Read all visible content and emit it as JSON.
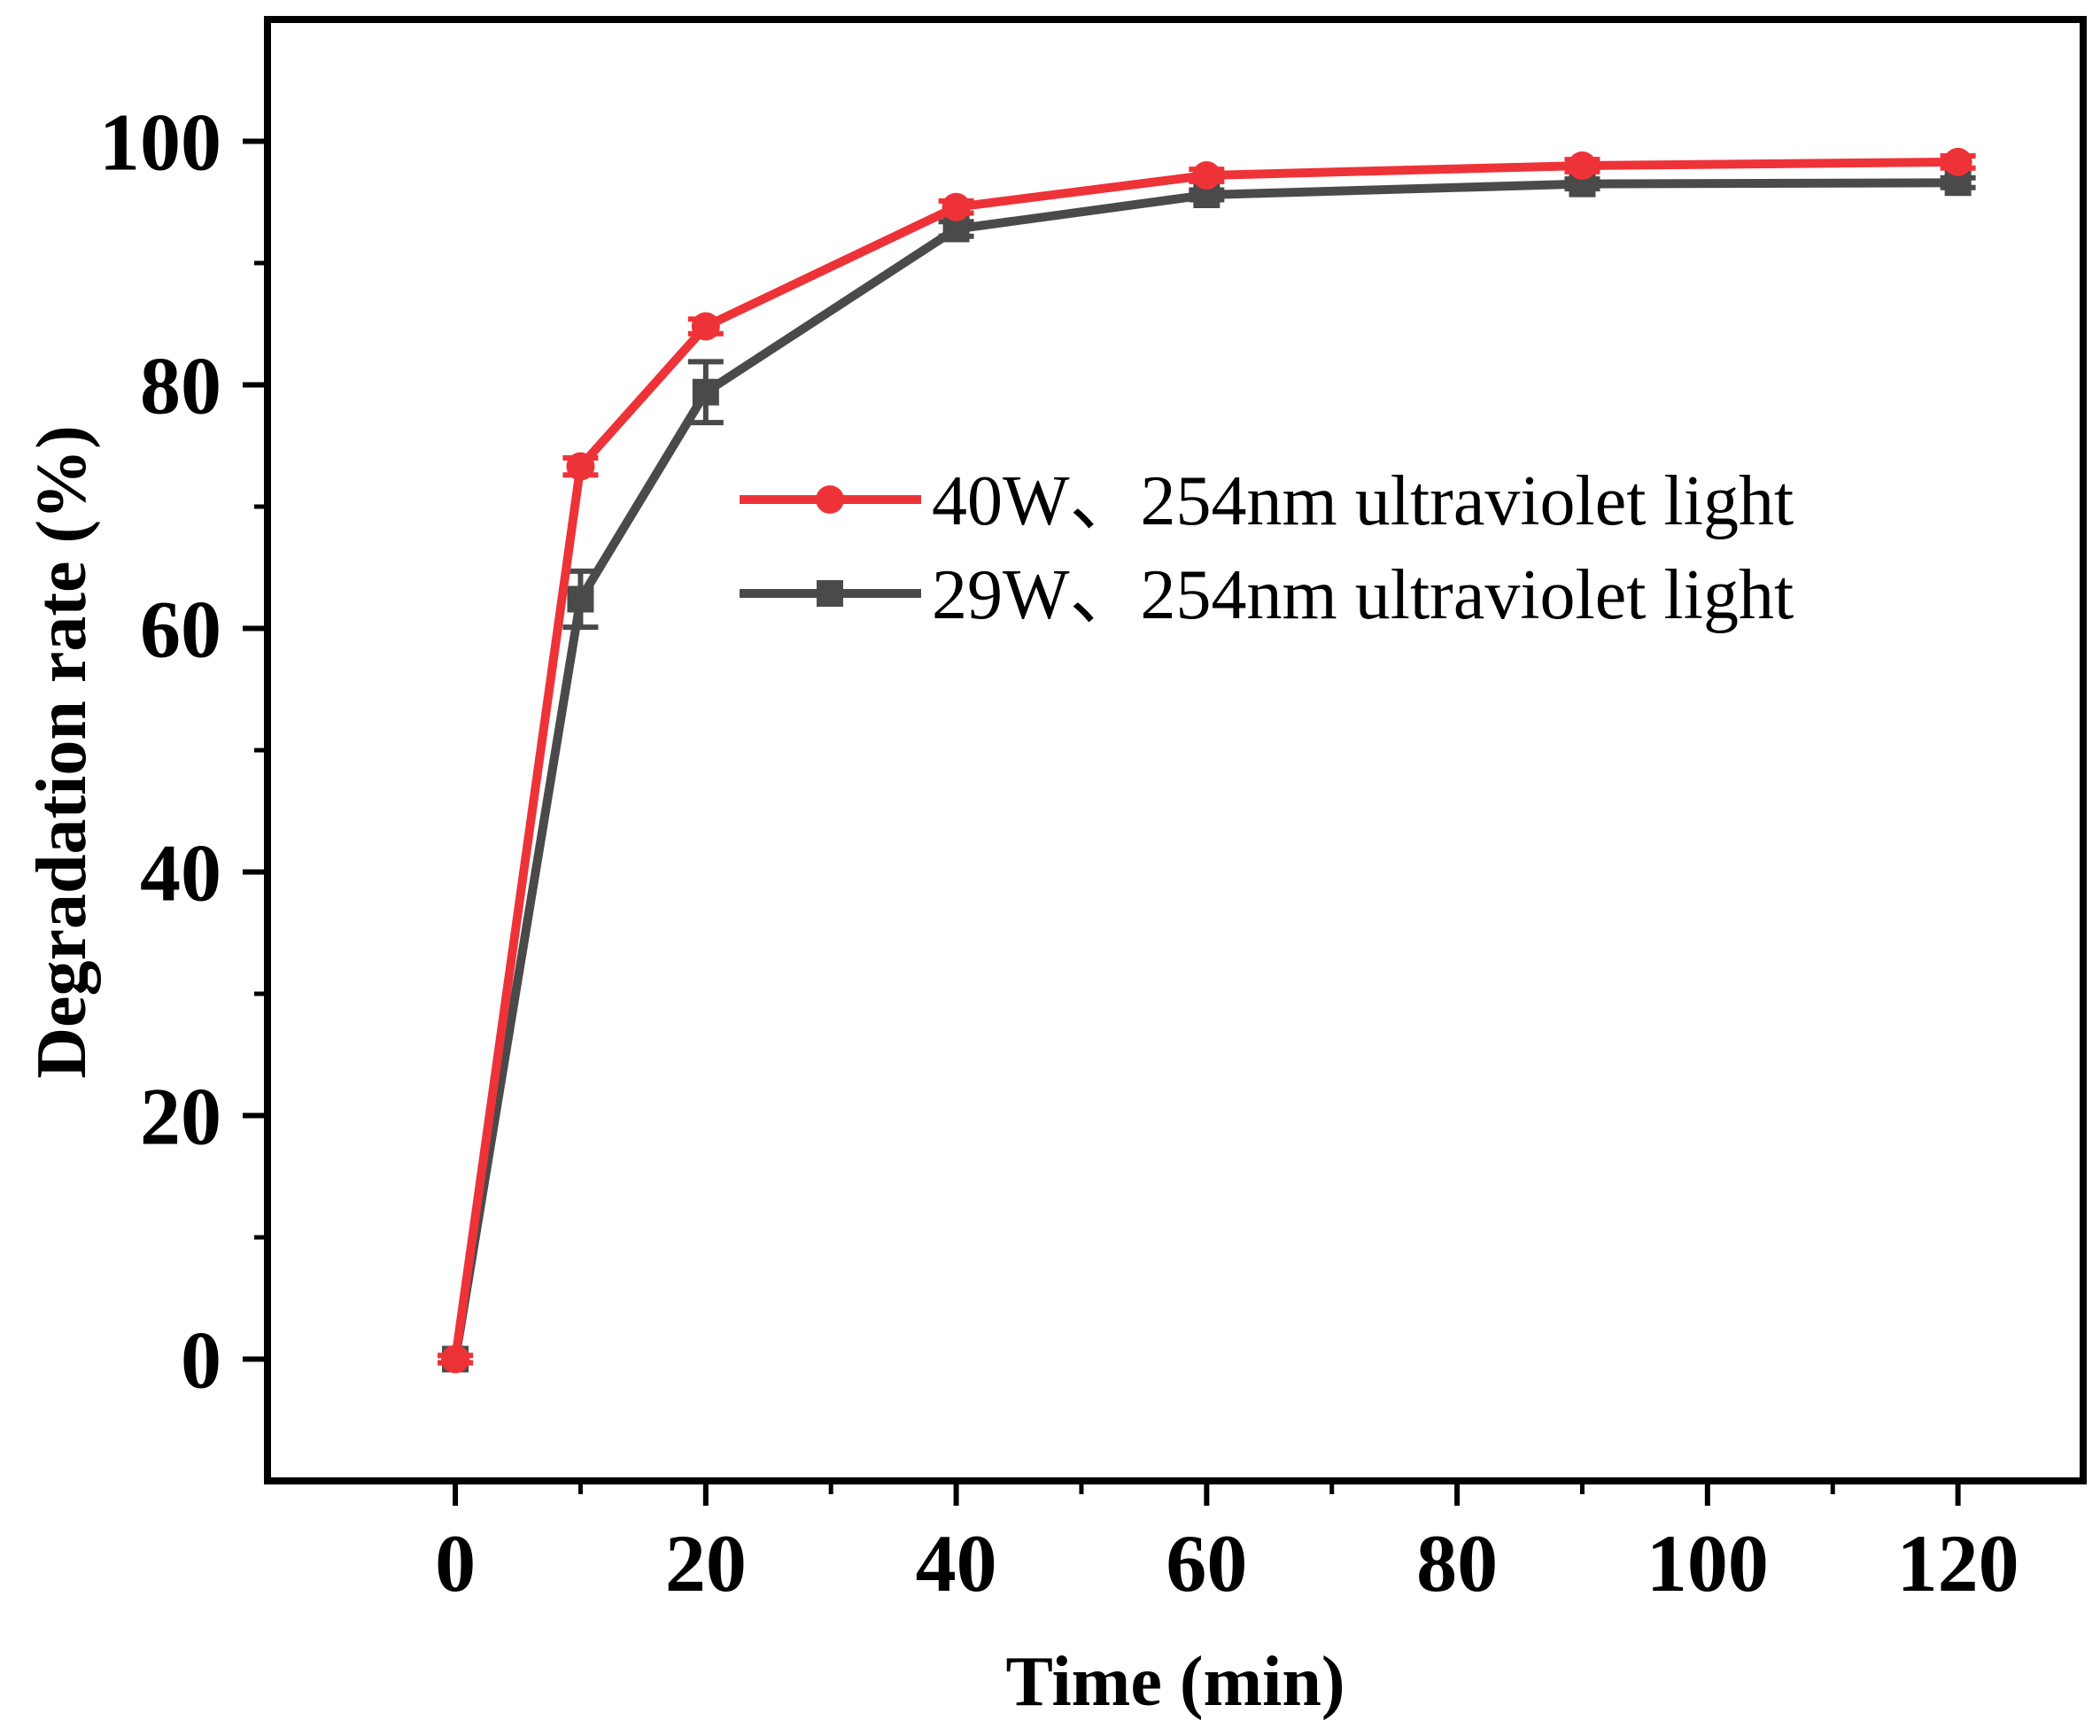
{
  "chart_data": {
    "type": "line",
    "title": "",
    "xlabel": "Time (min)",
    "ylabel": "Degradation rate (%)",
    "xlim": [
      -15,
      130
    ],
    "ylim": [
      -10,
      110
    ],
    "xticks": [
      0,
      20,
      40,
      60,
      80,
      100,
      120
    ],
    "xticks_minor": [
      10,
      30,
      50,
      70,
      90,
      110
    ],
    "yticks": [
      0,
      20,
      40,
      60,
      80,
      100
    ],
    "yticks_minor": [
      10,
      30,
      50,
      70,
      90
    ],
    "grid": false,
    "legend_position": "center-right",
    "x": [
      0,
      10,
      20,
      40,
      60,
      90,
      120
    ],
    "series": [
      {
        "name": "40W、254nm ultraviolet light",
        "color": "#ee3338",
        "marker": "circle",
        "values": [
          0,
          73.3,
          84.8,
          94.6,
          97.2,
          98.0,
          98.3
        ],
        "errors": [
          0.3,
          0.7,
          0.6,
          0.5,
          0.5,
          0.5,
          0.5
        ]
      },
      {
        "name": "29W、254nm ultraviolet light",
        "color": "#4a4a4a",
        "marker": "square",
        "values": [
          0,
          62.4,
          79.4,
          92.8,
          95.6,
          96.5,
          96.6
        ],
        "errors": [
          0.3,
          2.3,
          2.5,
          0.6,
          0.4,
          0.4,
          0.4
        ]
      }
    ]
  }
}
